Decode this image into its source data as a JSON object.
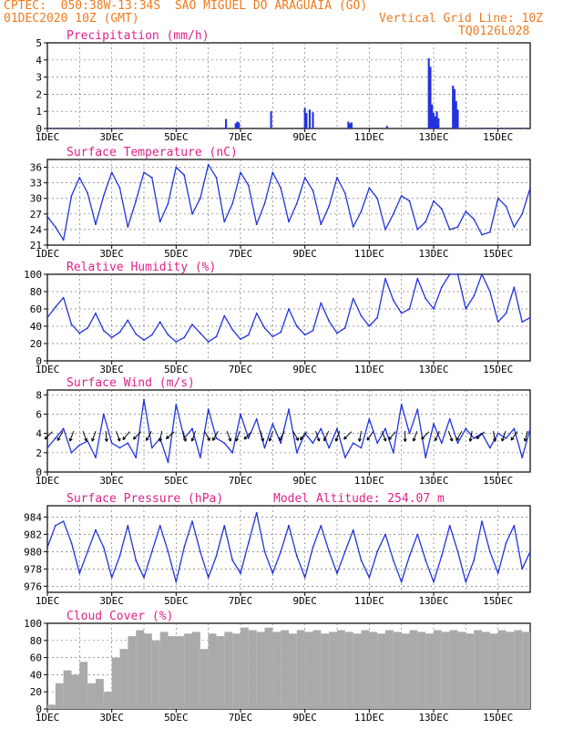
{
  "header": {
    "line1": "CPTEC:  050:38W-13:34S  SAO MIGUEL DO ARAGUAIA (GO)",
    "date": "01DEC2020 10Z (GMT)",
    "grid_note": "Vertical Grid Line: 10Z",
    "model": "TQ0126L028"
  },
  "x_axis": {
    "labels": [
      "1DEC",
      "3DEC",
      "5DEC",
      "7DEC",
      "9DEC",
      "11DEC",
      "13DEC",
      "15DEC"
    ],
    "label_days": [
      0,
      2,
      4,
      6,
      8,
      10,
      12,
      14
    ],
    "grid_days": [
      1,
      2,
      3,
      4,
      5,
      6,
      7,
      8,
      9,
      10,
      11,
      12,
      13,
      14
    ],
    "range_days": [
      0,
      15
    ]
  },
  "colors": {
    "header": "#f07a1e",
    "title": "#e0218a",
    "line": "#2233dd",
    "cloud": "#aaaaaa",
    "wind_arrow": "#000000"
  },
  "chart_data": [
    {
      "type": "bar",
      "title": "Precipitation (mm/h)",
      "ylim": [
        0,
        5
      ],
      "yticks": [
        0,
        1,
        2,
        3,
        4,
        5
      ],
      "x": [
        0.1,
        0.3,
        0.5,
        0.7,
        0.9,
        1.1,
        1.3,
        1.5,
        1.7,
        1.9,
        2.1,
        2.3,
        2.5,
        2.7,
        2.9,
        3.1,
        3.3,
        3.5,
        3.7,
        3.9,
        4.1,
        4.3,
        4.5,
        4.7,
        4.9,
        5.1,
        5.3,
        5.5,
        5.55,
        5.85,
        5.9,
        5.95,
        6.95,
        8.0,
        8.05,
        8.15,
        8.25,
        9.35,
        9.4,
        9.45,
        10.55,
        11.85,
        11.9,
        11.95,
        12.0,
        12.05,
        12.1,
        12.15,
        12.6,
        12.65,
        12.7,
        12.75,
        13.1,
        13.3,
        13.5,
        13.7,
        13.9,
        14.1,
        14.3,
        14.5,
        14.7,
        14.9
      ],
      "values": [
        0.05,
        0.05,
        0.05,
        0.05,
        0.05,
        0.05,
        0.05,
        0.05,
        0.05,
        0.05,
        0.05,
        0.05,
        0.05,
        0.05,
        0.05,
        0.05,
        0.05,
        0.05,
        0.05,
        0.05,
        0.05,
        0.05,
        0.05,
        0.05,
        0.05,
        0.05,
        0.05,
        0.05,
        0.55,
        0.3,
        0.4,
        0.35,
        1.0,
        1.2,
        0.9,
        1.1,
        0.95,
        0.4,
        0.3,
        0.35,
        0.15,
        4.1,
        3.6,
        1.4,
        0.9,
        0.7,
        1.0,
        0.6,
        2.5,
        2.3,
        1.6,
        1.1,
        0.05,
        0.05,
        0.05,
        0.05,
        0.05,
        0.05,
        0.05,
        0.05,
        0.05,
        0.05
      ]
    },
    {
      "type": "line",
      "title": "Surface Temperature (nC)",
      "ylim": [
        21,
        37.5
      ],
      "yticks": [
        21,
        24,
        27,
        30,
        33,
        36
      ],
      "x": [
        0,
        0.25,
        0.5,
        0.75,
        1,
        1.25,
        1.5,
        1.75,
        2,
        2.25,
        2.5,
        2.75,
        3,
        3.25,
        3.5,
        3.75,
        4,
        4.25,
        4.5,
        4.75,
        5,
        5.25,
        5.5,
        5.75,
        6,
        6.25,
        6.5,
        6.75,
        7,
        7.25,
        7.5,
        7.75,
        8,
        8.25,
        8.5,
        8.75,
        9,
        9.25,
        9.5,
        9.75,
        10,
        10.25,
        10.5,
        10.75,
        11,
        11.25,
        11.5,
        11.75,
        12,
        12.25,
        12.5,
        12.75,
        13,
        13.25,
        13.5,
        13.75,
        14,
        14.25,
        14.5,
        14.75,
        15
      ],
      "values": [
        26.5,
        24.5,
        22.0,
        30.5,
        34.0,
        31.0,
        25.0,
        30.5,
        35.0,
        32.0,
        24.5,
        29.5,
        35.0,
        34.0,
        25.5,
        29.0,
        36.0,
        34.5,
        27.0,
        30.0,
        36.5,
        34.0,
        25.5,
        29.0,
        35.0,
        32.5,
        25.0,
        29.0,
        35.0,
        32.0,
        25.5,
        29.0,
        34.0,
        31.5,
        25.0,
        28.5,
        34.0,
        31.0,
        24.5,
        27.5,
        32.0,
        30.0,
        24.0,
        27.0,
        30.5,
        29.5,
        24.0,
        25.5,
        29.5,
        28.0,
        24.0,
        24.5,
        27.5,
        26.0,
        23.0,
        23.5,
        30.0,
        28.5,
        24.5,
        27.0,
        32.0
      ]
    },
    {
      "type": "line",
      "title": "Relative Humidity (%)",
      "ylim": [
        0,
        100
      ],
      "yticks": [
        0,
        20,
        40,
        60,
        80,
        100
      ],
      "x": [
        0,
        0.25,
        0.5,
        0.75,
        1,
        1.25,
        1.5,
        1.75,
        2,
        2.25,
        2.5,
        2.75,
        3,
        3.25,
        3.5,
        3.75,
        4,
        4.25,
        4.5,
        4.75,
        5,
        5.25,
        5.5,
        5.75,
        6,
        6.25,
        6.5,
        6.75,
        7,
        7.25,
        7.5,
        7.75,
        8,
        8.25,
        8.5,
        8.75,
        9,
        9.25,
        9.5,
        9.75,
        10,
        10.25,
        10.5,
        10.75,
        11,
        11.25,
        11.5,
        11.75,
        12,
        12.25,
        12.5,
        12.75,
        13,
        13.25,
        13.5,
        13.75,
        14,
        14.25,
        14.5,
        14.75,
        15
      ],
      "values": [
        50,
        62,
        73,
        42,
        32,
        38,
        55,
        35,
        27,
        33,
        47,
        31,
        24,
        30,
        45,
        30,
        22,
        27,
        42,
        32,
        22,
        28,
        52,
        36,
        25,
        30,
        55,
        38,
        28,
        33,
        60,
        40,
        30,
        35,
        67,
        46,
        32,
        38,
        72,
        52,
        40,
        50,
        95,
        70,
        55,
        60,
        95,
        72,
        60,
        85,
        100,
        100,
        60,
        75,
        100,
        80,
        45,
        55,
        85,
        45,
        50
      ]
    },
    {
      "type": "line",
      "title": "Surface Wind (m/s)",
      "ylim": [
        0,
        8.5
      ],
      "yticks": [
        0,
        2,
        4,
        6,
        8
      ],
      "x": [
        0,
        0.25,
        0.5,
        0.75,
        1,
        1.25,
        1.5,
        1.75,
        2,
        2.25,
        2.5,
        2.75,
        3,
        3.25,
        3.5,
        3.75,
        4,
        4.25,
        4.5,
        4.75,
        5,
        5.25,
        5.5,
        5.75,
        6,
        6.25,
        6.5,
        6.75,
        7,
        7.25,
        7.5,
        7.75,
        8,
        8.25,
        8.5,
        8.75,
        9,
        9.25,
        9.5,
        9.75,
        10,
        10.25,
        10.5,
        10.75,
        11,
        11.25,
        11.5,
        11.75,
        12,
        12.25,
        12.5,
        12.75,
        13,
        13.25,
        13.5,
        13.75,
        14,
        14.25,
        14.5,
        14.75,
        15
      ],
      "values": [
        2.5,
        3.5,
        4.5,
        2.0,
        2.8,
        3.2,
        1.5,
        6.0,
        3.0,
        2.5,
        3.0,
        1.5,
        7.5,
        2.5,
        3.5,
        1.0,
        7.0,
        3.5,
        4.5,
        1.5,
        6.5,
        3.5,
        3.0,
        2.0,
        6.0,
        3.5,
        5.5,
        2.5,
        5.0,
        3.0,
        6.5,
        2.0,
        4.0,
        3.0,
        4.5,
        2.5,
        4.5,
        1.5,
        3.0,
        2.5,
        5.5,
        3.0,
        4.5,
        2.0,
        7.0,
        4.0,
        6.5,
        1.5,
        5.0,
        3.0,
        5.5,
        3.0,
        4.5,
        3.5,
        4.0,
        2.5,
        4.0,
        3.5,
        4.5,
        1.5,
        4.5
      ],
      "wind_barbs_deg": [
        225,
        210,
        200,
        160,
        200,
        175,
        160,
        220,
        225,
        210,
        190,
        230,
        165,
        200,
        150,
        210,
        160,
        200,
        225,
        165,
        200,
        210,
        150,
        220,
        160,
        205,
        200,
        225,
        190,
        215,
        160,
        220,
        180,
        200,
        225,
        205,
        160,
        210,
        190,
        230,
        170,
        200,
        215,
        195
      ]
    },
    {
      "type": "line",
      "title": "Surface Pressure (hPa)",
      "annotation": "Model Altitude: 254.07  m",
      "ylim": [
        975.3,
        985.3
      ],
      "yticks": [
        976,
        978,
        980,
        982,
        984
      ],
      "x": [
        0,
        0.25,
        0.5,
        0.75,
        1,
        1.25,
        1.5,
        1.75,
        2,
        2.25,
        2.5,
        2.75,
        3,
        3.25,
        3.5,
        3.75,
        4,
        4.25,
        4.5,
        4.75,
        5,
        5.25,
        5.5,
        5.75,
        6,
        6.25,
        6.5,
        6.75,
        7,
        7.25,
        7.5,
        7.75,
        8,
        8.25,
        8.5,
        8.75,
        9,
        9.25,
        9.5,
        9.75,
        10,
        10.25,
        10.5,
        10.75,
        11,
        11.25,
        11.5,
        11.75,
        12,
        12.25,
        12.5,
        12.75,
        13,
        13.25,
        13.5,
        13.75,
        14,
        14.25,
        14.5,
        14.75,
        15
      ],
      "values": [
        980.5,
        983.0,
        983.5,
        981.0,
        977.5,
        980.0,
        982.5,
        980.5,
        977.0,
        979.5,
        983.0,
        979.0,
        977.0,
        980.0,
        983.0,
        980.0,
        976.5,
        980.5,
        983.5,
        980.0,
        977.0,
        979.5,
        983.0,
        979.0,
        977.5,
        981.0,
        984.5,
        980.0,
        977.5,
        980.0,
        983.0,
        979.5,
        977.0,
        980.5,
        983.0,
        980.0,
        977.5,
        980.0,
        982.5,
        979.0,
        977.0,
        980.0,
        982.0,
        979.0,
        976.5,
        979.5,
        982.0,
        979.0,
        976.5,
        979.5,
        983.0,
        980.0,
        976.5,
        979.0,
        983.5,
        980.0,
        977.5,
        981.0,
        983.0,
        978.0,
        980.0
      ]
    },
    {
      "type": "bar",
      "title": "Cloud Cover (%)",
      "ylim": [
        0,
        100
      ],
      "yticks": [
        0,
        20,
        40,
        60,
        80,
        100
      ],
      "x": [
        0.125,
        0.375,
        0.625,
        0.875,
        1.125,
        1.375,
        1.625,
        1.875,
        2.125,
        2.375,
        2.625,
        2.875,
        3.125,
        3.375,
        3.625,
        3.875,
        4.125,
        4.375,
        4.625,
        4.875,
        5.125,
        5.375,
        5.625,
        5.875,
        6.125,
        6.375,
        6.625,
        6.875,
        7.125,
        7.375,
        7.625,
        7.875,
        8.125,
        8.375,
        8.625,
        8.875,
        9.125,
        9.375,
        9.625,
        9.875,
        10.125,
        10.375,
        10.625,
        10.875,
        11.125,
        11.375,
        11.625,
        11.875,
        12.125,
        12.375,
        12.625,
        12.875,
        13.125,
        13.375,
        13.625,
        13.875,
        14.125,
        14.375,
        14.625,
        14.875
      ],
      "values": [
        5,
        30,
        45,
        40,
        55,
        30,
        35,
        20,
        60,
        70,
        85,
        92,
        88,
        80,
        90,
        85,
        85,
        88,
        90,
        70,
        88,
        85,
        90,
        88,
        95,
        92,
        90,
        95,
        90,
        92,
        88,
        92,
        90,
        92,
        88,
        90,
        92,
        90,
        88,
        92,
        90,
        88,
        92,
        90,
        88,
        92,
        90,
        88,
        92,
        90,
        92,
        90,
        88,
        92,
        90,
        88,
        92,
        90,
        92,
        90
      ]
    }
  ]
}
